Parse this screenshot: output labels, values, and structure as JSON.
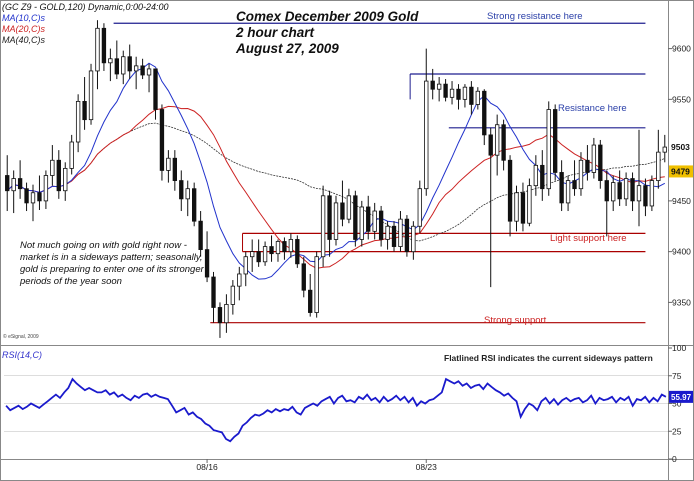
{
  "legend": {
    "line1": "(GC Z9 - GOLD,120) Dynamic,0:00-24:00",
    "ma10": "MA(10,C)s",
    "ma20": "MA(20,C)s",
    "ma40": "MA(40,C)s"
  },
  "title": {
    "line1": "Comex December 2009 Gold",
    "line2": "2 hour chart",
    "line3": "August 27, 2009"
  },
  "annotations": {
    "strong_resistance": "Strong resistance here",
    "resistance": "Resistance here",
    "light_support": "Light support here",
    "strong_support": "Strong support",
    "note": "Not much going on with gold right now - market is in a sideways pattern; seasonally, gold is preparing to enter one of its stronger periods of the year soon",
    "copyright": "© eSignal, 2009"
  },
  "rsi": {
    "label": "RSI(14,C)",
    "note": "Flatlined RSI indicates the current sideways pattern",
    "current_value": "55.97"
  },
  "colors": {
    "resistance_line": "#1f1f8f",
    "support_line": "#aa0000",
    "ma10": "#2233cc",
    "ma20": "#cc2222",
    "ma40": "#333333",
    "rsi_line": "#1a1acc"
  },
  "chart_data": [
    {
      "type": "candlestick",
      "title": "Comex December 2009 Gold",
      "y_ticks": [
        9350,
        9400,
        9450,
        9500,
        9550,
        9600
      ],
      "ylim": [
        9310,
        9640
      ],
      "x_ticks": [
        "08/16",
        "08/23"
      ],
      "last_price": "9503",
      "ma10_last": "9479",
      "ohlc": [
        {
          "o": 9475,
          "h": 9495,
          "l": 9440,
          "c": 9460
        },
        {
          "o": 9460,
          "h": 9480,
          "l": 9438,
          "c": 9472
        },
        {
          "o": 9472,
          "h": 9490,
          "l": 9452,
          "c": 9462
        },
        {
          "o": 9462,
          "h": 9468,
          "l": 9440,
          "c": 9448
        },
        {
          "o": 9448,
          "h": 9466,
          "l": 9430,
          "c": 9458
        },
        {
          "o": 9458,
          "h": 9475,
          "l": 9441,
          "c": 9450
        },
        {
          "o": 9450,
          "h": 9480,
          "l": 9442,
          "c": 9475
        },
        {
          "o": 9475,
          "h": 9505,
          "l": 9465,
          "c": 9490
        },
        {
          "o": 9490,
          "h": 9500,
          "l": 9452,
          "c": 9460
        },
        {
          "o": 9460,
          "h": 9488,
          "l": 9450,
          "c": 9482
        },
        {
          "o": 9482,
          "h": 9515,
          "l": 9476,
          "c": 9508
        },
        {
          "o": 9508,
          "h": 9555,
          "l": 9498,
          "c": 9548
        },
        {
          "o": 9548,
          "h": 9572,
          "l": 9520,
          "c": 9530
        },
        {
          "o": 9530,
          "h": 9585,
          "l": 9525,
          "c": 9578
        },
        {
          "o": 9578,
          "h": 9628,
          "l": 9560,
          "c": 9620
        },
        {
          "o": 9620,
          "h": 9625,
          "l": 9578,
          "c": 9586
        },
        {
          "o": 9586,
          "h": 9600,
          "l": 9568,
          "c": 9590
        },
        {
          "o": 9590,
          "h": 9608,
          "l": 9570,
          "c": 9575
        },
        {
          "o": 9575,
          "h": 9598,
          "l": 9565,
          "c": 9592
        },
        {
          "o": 9592,
          "h": 9604,
          "l": 9570,
          "c": 9578
        },
        {
          "o": 9578,
          "h": 9592,
          "l": 9560,
          "c": 9583
        },
        {
          "o": 9583,
          "h": 9590,
          "l": 9570,
          "c": 9574
        },
        {
          "o": 9574,
          "h": 9585,
          "l": 9557,
          "c": 9580
        },
        {
          "o": 9580,
          "h": 9580,
          "l": 9530,
          "c": 9540
        },
        {
          "o": 9540,
          "h": 9545,
          "l": 9470,
          "c": 9480
        },
        {
          "o": 9480,
          "h": 9500,
          "l": 9468,
          "c": 9492
        },
        {
          "o": 9492,
          "h": 9500,
          "l": 9460,
          "c": 9470
        },
        {
          "o": 9470,
          "h": 9480,
          "l": 9440,
          "c": 9452
        },
        {
          "o": 9452,
          "h": 9470,
          "l": 9435,
          "c": 9462
        },
        {
          "o": 9462,
          "h": 9468,
          "l": 9425,
          "c": 9430
        },
        {
          "o": 9430,
          "h": 9440,
          "l": 9395,
          "c": 9402
        },
        {
          "o": 9402,
          "h": 9420,
          "l": 9370,
          "c": 9375
        },
        {
          "o": 9375,
          "h": 9380,
          "l": 9330,
          "c": 9345
        },
        {
          "o": 9345,
          "h": 9350,
          "l": 9315,
          "c": 9330
        },
        {
          "o": 9330,
          "h": 9358,
          "l": 9320,
          "c": 9348
        },
        {
          "o": 9348,
          "h": 9372,
          "l": 9338,
          "c": 9366
        },
        {
          "o": 9366,
          "h": 9385,
          "l": 9352,
          "c": 9378
        },
        {
          "o": 9378,
          "h": 9400,
          "l": 9366,
          "c": 9395
        },
        {
          "o": 9395,
          "h": 9412,
          "l": 9380,
          "c": 9400
        },
        {
          "o": 9400,
          "h": 9412,
          "l": 9385,
          "c": 9390
        },
        {
          "o": 9390,
          "h": 9410,
          "l": 9386,
          "c": 9405
        },
        {
          "o": 9405,
          "h": 9416,
          "l": 9390,
          "c": 9398
        },
        {
          "o": 9398,
          "h": 9412,
          "l": 9390,
          "c": 9410
        },
        {
          "o": 9410,
          "h": 9414,
          "l": 9392,
          "c": 9400
        },
        {
          "o": 9400,
          "h": 9418,
          "l": 9394,
          "c": 9412
        },
        {
          "o": 9412,
          "h": 9416,
          "l": 9384,
          "c": 9388
        },
        {
          "o": 9388,
          "h": 9395,
          "l": 9355,
          "c": 9362
        },
        {
          "o": 9362,
          "h": 9378,
          "l": 9336,
          "c": 9340
        },
        {
          "o": 9340,
          "h": 9400,
          "l": 9335,
          "c": 9395
        },
        {
          "o": 9395,
          "h": 9465,
          "l": 9385,
          "c": 9455
        },
        {
          "o": 9455,
          "h": 9460,
          "l": 9395,
          "c": 9412
        },
        {
          "o": 9412,
          "h": 9455,
          "l": 9406,
          "c": 9448
        },
        {
          "o": 9448,
          "h": 9470,
          "l": 9425,
          "c": 9432
        },
        {
          "o": 9432,
          "h": 9462,
          "l": 9428,
          "c": 9455
        },
        {
          "o": 9455,
          "h": 9460,
          "l": 9405,
          "c": 9412
        },
        {
          "o": 9412,
          "h": 9450,
          "l": 9405,
          "c": 9444
        },
        {
          "o": 9444,
          "h": 9455,
          "l": 9412,
          "c": 9420
        },
        {
          "o": 9420,
          "h": 9448,
          "l": 9412,
          "c": 9440
        },
        {
          "o": 9440,
          "h": 9445,
          "l": 9405,
          "c": 9412
        },
        {
          "o": 9412,
          "h": 9430,
          "l": 9402,
          "c": 9425
        },
        {
          "o": 9425,
          "h": 9430,
          "l": 9400,
          "c": 9405
        },
        {
          "o": 9405,
          "h": 9440,
          "l": 9400,
          "c": 9432
        },
        {
          "o": 9432,
          "h": 9436,
          "l": 9395,
          "c": 9400
        },
        {
          "o": 9400,
          "h": 9430,
          "l": 9392,
          "c": 9425
        },
        {
          "o": 9425,
          "h": 9470,
          "l": 9418,
          "c": 9462
        },
        {
          "o": 9462,
          "h": 9600,
          "l": 9455,
          "c": 9568
        },
        {
          "o": 9568,
          "h": 9580,
          "l": 9550,
          "c": 9560
        },
        {
          "o": 9560,
          "h": 9572,
          "l": 9548,
          "c": 9565
        },
        {
          "o": 9565,
          "h": 9570,
          "l": 9548,
          "c": 9552
        },
        {
          "o": 9552,
          "h": 9568,
          "l": 9545,
          "c": 9560
        },
        {
          "o": 9560,
          "h": 9565,
          "l": 9540,
          "c": 9550
        },
        {
          "o": 9550,
          "h": 9565,
          "l": 9542,
          "c": 9562
        },
        {
          "o": 9562,
          "h": 9568,
          "l": 9535,
          "c": 9545
        },
        {
          "o": 9545,
          "h": 9562,
          "l": 9540,
          "c": 9558
        },
        {
          "o": 9558,
          "h": 9560,
          "l": 9505,
          "c": 9515
        },
        {
          "o": 9515,
          "h": 9522,
          "l": 9365,
          "c": 9495
        },
        {
          "o": 9495,
          "h": 9535,
          "l": 9475,
          "c": 9525
        },
        {
          "o": 9525,
          "h": 9530,
          "l": 9480,
          "c": 9490
        },
        {
          "o": 9490,
          "h": 9495,
          "l": 9415,
          "c": 9430
        },
        {
          "o": 9430,
          "h": 9465,
          "l": 9420,
          "c": 9458
        },
        {
          "o": 9458,
          "h": 9468,
          "l": 9420,
          "c": 9428
        },
        {
          "o": 9428,
          "h": 9472,
          "l": 9425,
          "c": 9465
        },
        {
          "o": 9465,
          "h": 9495,
          "l": 9455,
          "c": 9485
        },
        {
          "o": 9485,
          "h": 9500,
          "l": 9450,
          "c": 9462
        },
        {
          "o": 9462,
          "h": 9548,
          "l": 9455,
          "c": 9540
        },
        {
          "o": 9540,
          "h": 9545,
          "l": 9470,
          "c": 9478
        },
        {
          "o": 9478,
          "h": 9490,
          "l": 9440,
          "c": 9448
        },
        {
          "o": 9448,
          "h": 9475,
          "l": 9440,
          "c": 9470
        },
        {
          "o": 9470,
          "h": 9490,
          "l": 9455,
          "c": 9462
        },
        {
          "o": 9462,
          "h": 9498,
          "l": 9455,
          "c": 9490
        },
        {
          "o": 9490,
          "h": 9505,
          "l": 9470,
          "c": 9478
        },
        {
          "o": 9478,
          "h": 9512,
          "l": 9472,
          "c": 9505
        },
        {
          "o": 9505,
          "h": 9510,
          "l": 9462,
          "c": 9470
        },
        {
          "o": 9470,
          "h": 9480,
          "l": 9415,
          "c": 9450
        },
        {
          "o": 9450,
          "h": 9475,
          "l": 9440,
          "c": 9468
        },
        {
          "o": 9468,
          "h": 9480,
          "l": 9445,
          "c": 9452
        },
        {
          "o": 9452,
          "h": 9478,
          "l": 9445,
          "c": 9472
        },
        {
          "o": 9472,
          "h": 9478,
          "l": 9440,
          "c": 9450
        },
        {
          "o": 9450,
          "h": 9520,
          "l": 9425,
          "c": 9465
        },
        {
          "o": 9465,
          "h": 9472,
          "l": 9435,
          "c": 9445
        },
        {
          "o": 9445,
          "h": 9475,
          "l": 9440,
          "c": 9470
        },
        {
          "o": 9470,
          "h": 9520,
          "l": 9462,
          "c": 9498
        },
        {
          "o": 9498,
          "h": 9515,
          "l": 9488,
          "c": 9503
        }
      ],
      "horizontal_levels": [
        {
          "label": "Strong resistance here",
          "value": 9625,
          "kind": "resistance"
        },
        {
          "label": "",
          "value": 9575,
          "kind": "resistance"
        },
        {
          "label": "Resistance here",
          "value": 9522,
          "kind": "resistance"
        },
        {
          "label": "Light support here",
          "value": 9418,
          "kind": "support"
        },
        {
          "label": "",
          "value": 9400,
          "kind": "support"
        },
        {
          "label": "Strong support",
          "value": 9330,
          "kind": "support"
        }
      ]
    },
    {
      "type": "line",
      "title": "RSI(14,C)",
      "y_ticks": [
        0,
        25,
        50,
        75,
        100
      ],
      "ylim": [
        0,
        100
      ],
      "values": [
        48,
        44,
        46,
        48,
        45,
        47,
        50,
        48,
        46,
        49,
        52,
        55,
        58,
        55,
        60,
        64,
        72,
        68,
        65,
        62,
        64,
        62,
        60,
        60,
        62,
        58,
        60,
        56,
        58,
        55,
        53,
        57,
        55,
        58,
        59,
        56,
        58,
        56,
        55,
        54,
        48,
        42,
        44,
        46,
        40,
        42,
        38,
        36,
        32,
        30,
        26,
        25,
        24,
        18,
        16,
        20,
        23,
        30,
        33,
        37,
        40,
        39,
        41,
        44,
        42,
        45,
        43,
        45,
        44,
        47,
        42,
        40,
        46,
        48,
        50,
        48,
        52,
        54,
        56,
        50,
        55,
        57,
        52,
        53,
        51,
        56,
        54,
        58,
        53,
        55,
        51,
        56,
        52,
        54,
        57,
        53,
        56,
        51,
        55,
        48,
        52,
        50,
        53,
        54,
        57,
        60,
        72,
        70,
        68,
        70,
        66,
        68,
        64,
        66,
        67,
        63,
        68,
        65,
        62,
        60,
        57,
        59,
        55,
        52,
        38,
        45,
        50,
        48,
        44,
        52,
        55,
        50,
        54,
        49,
        53,
        55,
        52,
        54,
        55,
        51,
        53,
        57,
        50,
        55,
        53,
        54,
        56,
        51,
        55,
        53,
        56,
        48,
        54,
        53,
        56,
        51,
        55,
        52,
        58,
        56
      ]
    }
  ]
}
